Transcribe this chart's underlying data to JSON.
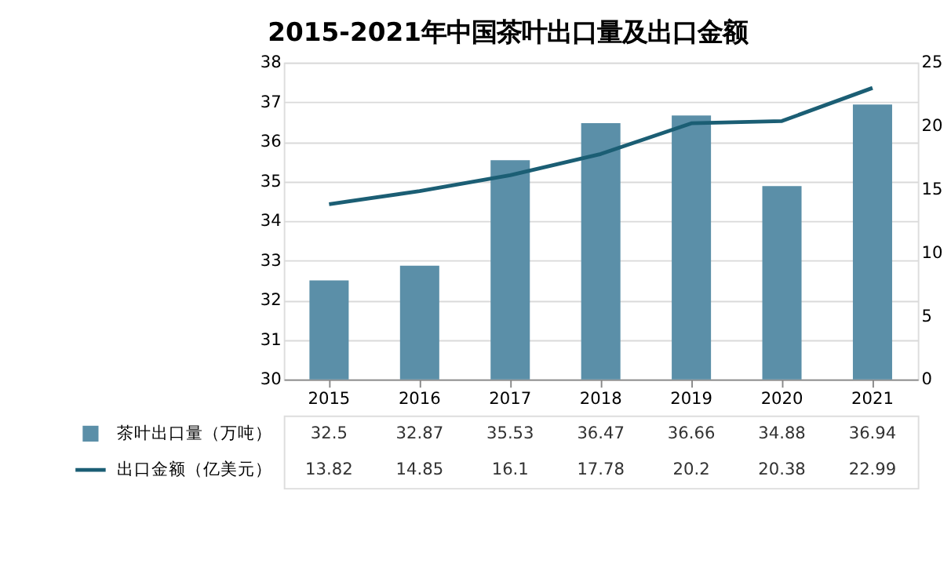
{
  "chart_data": {
    "type": "bar",
    "title": "2015-2021年中国茶叶出口量及出口金额",
    "categories": [
      "2015",
      "2016",
      "2017",
      "2018",
      "2019",
      "2020",
      "2021"
    ],
    "series": [
      {
        "name": "茶叶出口量（万吨）",
        "color": "#5b8fa8",
        "values": [
          32.5,
          32.87,
          35.53,
          36.47,
          36.66,
          34.88,
          36.94
        ]
      },
      {
        "name": "出口金额（亿美元）",
        "type": "line",
        "axis": "y2",
        "color": "#1b5e74",
        "values": [
          13.82,
          14.85,
          16.1,
          17.78,
          20.2,
          20.38,
          22.99
        ]
      }
    ],
    "ylim": [
      30,
      38
    ],
    "yticks": [
      30,
      31,
      32,
      33,
      34,
      35,
      36,
      37,
      38
    ],
    "y2lim": [
      0,
      25
    ],
    "y2ticks": [
      0,
      5,
      10,
      15,
      20,
      25
    ],
    "grid": "y",
    "data_labels": true,
    "legend": "bottom",
    "marker": "none",
    "line_style": "solid"
  }
}
